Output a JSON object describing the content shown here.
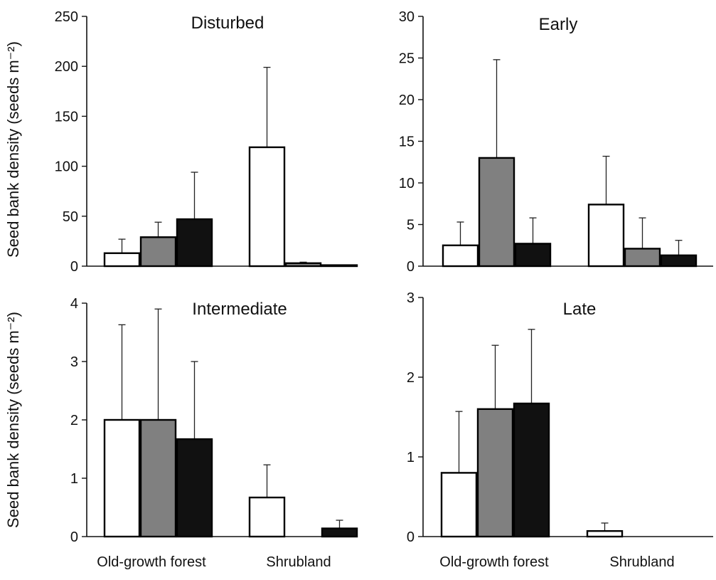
{
  "ylabels": [
    "Seed bank density (seeds m⁻²)",
    "Seed bank density (seeds m⁻²)"
  ],
  "colors": {
    "s1": "#ffffff",
    "s2": "#808080",
    "s3": "#111111",
    "axis": "#111111"
  },
  "chart_data": [
    {
      "type": "bar",
      "title": "Disturbed",
      "categories": [
        "Old-growth forest",
        "Shrubland"
      ],
      "series": [
        {
          "name": "series-1",
          "values": [
            13,
            119
          ],
          "errors": [
            27,
            199
          ]
        },
        {
          "name": "series-2",
          "values": [
            29,
            3
          ],
          "errors": [
            44,
            4
          ]
        },
        {
          "name": "series-3",
          "values": [
            47,
            1
          ],
          "errors": [
            94,
            1
          ]
        }
      ],
      "ylim": [
        0,
        250
      ],
      "yticks": [
        0,
        50,
        100,
        150,
        200,
        250
      ],
      "ylabel": "Seed bank density (seeds m⁻²)",
      "show_category_labels": false
    },
    {
      "type": "bar",
      "title": "Early",
      "categories": [
        "Old-growth forest",
        "Shrubland"
      ],
      "series": [
        {
          "name": "series-1",
          "values": [
            2.5,
            7.4
          ],
          "errors": [
            5.3,
            13.2
          ]
        },
        {
          "name": "series-2",
          "values": [
            13,
            2.1
          ],
          "errors": [
            24.8,
            5.8
          ]
        },
        {
          "name": "series-3",
          "values": [
            2.7,
            1.3
          ],
          "errors": [
            5.8,
            3.1
          ]
        }
      ],
      "ylim": [
        0,
        30
      ],
      "yticks": [
        0,
        5,
        10,
        15,
        20,
        25,
        30
      ],
      "ylabel": "",
      "show_category_labels": false
    },
    {
      "type": "bar",
      "title": "Intermediate",
      "categories": [
        "Old-growth forest",
        "Shrubland"
      ],
      "series": [
        {
          "name": "series-1",
          "values": [
            2.0,
            0.67
          ],
          "errors": [
            3.63,
            1.23
          ]
        },
        {
          "name": "series-2",
          "values": [
            2.0,
            0
          ],
          "errors": [
            3.9,
            0
          ]
        },
        {
          "name": "series-3",
          "values": [
            1.67,
            0.14
          ],
          "errors": [
            3.0,
            0.28
          ]
        }
      ],
      "ylim": [
        0,
        4
      ],
      "yticks": [
        0,
        1,
        2,
        3,
        4
      ],
      "ylabel": "Seed bank density (seeds m⁻²)",
      "show_category_labels": true
    },
    {
      "type": "bar",
      "title": "Late",
      "categories": [
        "Old-growth forest",
        "Shrubland"
      ],
      "series": [
        {
          "name": "series-1",
          "values": [
            0.8,
            0.07
          ],
          "errors": [
            1.57,
            0.17
          ]
        },
        {
          "name": "series-2",
          "values": [
            1.6,
            0
          ],
          "errors": [
            2.4,
            0
          ]
        },
        {
          "name": "series-3",
          "values": [
            1.67,
            0
          ],
          "errors": [
            2.6,
            0
          ]
        }
      ],
      "ylim": [
        0,
        3
      ],
      "yticks": [
        0,
        1,
        2,
        3
      ],
      "ylabel": "",
      "show_category_labels": true
    }
  ]
}
